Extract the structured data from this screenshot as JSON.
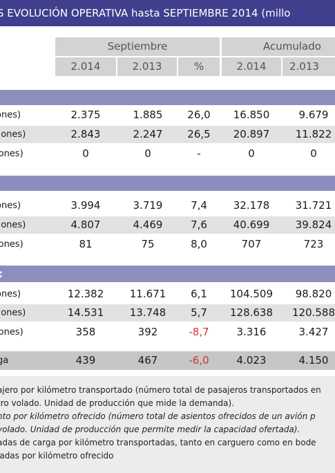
{
  "title": "S EVOLUCIÓN OPERATIVA hasta SEPTIEMBRE 2014 (millo",
  "headers": {
    "group_septiembre": "Septiembre",
    "group_acumulado": "Acumulado",
    "cols": [
      "2.014",
      "2.013",
      "%",
      "2.014",
      "2.013"
    ]
  },
  "section1": {
    "band_label": "",
    "rows": [
      {
        "label": "ones)",
        "values": [
          "2.375",
          "1.885",
          "26,0",
          "16.850",
          "9.679"
        ]
      },
      {
        "label": "llones)",
        "values": [
          "2.843",
          "2.247",
          "26,5",
          "20.897",
          "11.822"
        ]
      },
      {
        "label": "lones)",
        "values": [
          "0",
          "0",
          "-",
          "0",
          "0"
        ]
      }
    ]
  },
  "section2": {
    "rows": [
      {
        "label": "ones)",
        "values": [
          "3.994",
          "3.719",
          "7,4",
          "32.178",
          "31.721"
        ]
      },
      {
        "label": "llones)",
        "values": [
          "4.807",
          "4.469",
          "7,6",
          "40.699",
          "39.824"
        ]
      },
      {
        "label": "lones)",
        "values": [
          "81",
          "75",
          "8,0",
          "707",
          "723"
        ]
      }
    ]
  },
  "section3": {
    "band_label": ":",
    "rows": [
      {
        "label": "ones)",
        "values": [
          "12.382",
          "11.671",
          "6,1",
          "104.509",
          "98.820"
        ]
      },
      {
        "label": "llones)",
        "values": [
          "14.531",
          "13.748",
          "5,7",
          "128.638",
          "120.588"
        ]
      },
      {
        "label": "lones)",
        "values": [
          "358",
          "392",
          "-8,7",
          "3.316",
          "3.427"
        ]
      }
    ]
  },
  "total": {
    "label": "ga",
    "values": [
      "439",
      "467",
      "-6,0",
      "4.023",
      "4.150"
    ]
  },
  "notes": [
    "ajero por kilómetro transportado (número total de pasajeros transportados en",
    "tro volado. Unidad de producción que mide la demanda).",
    "nto por kilómetro ofrecido (número total de asientos ofrecidos de un avión p",
    "volado. Unidad de producción que permite medir la capacidad ofertada).",
    "adas de carga por kilómetro transportadas, tanto en carguero como en bode",
    "ladas por kilómetro ofrecido"
  ],
  "colors": {
    "title_bg": "#3f3f8d",
    "band_bg": "#8e8ebe",
    "header_bg": "#d3d3d3",
    "negative": "#d0342c"
  }
}
